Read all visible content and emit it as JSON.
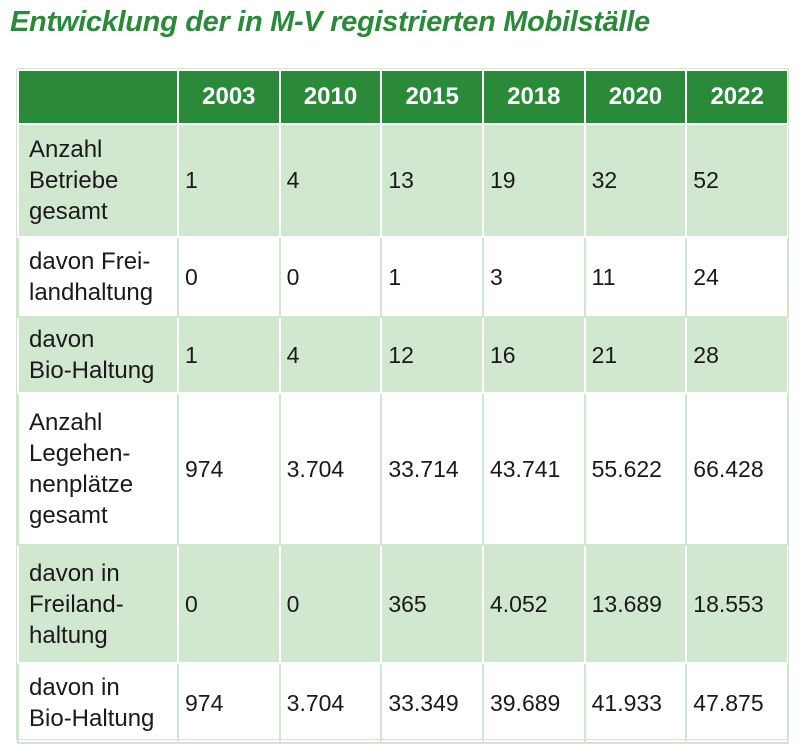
{
  "title": "Entwicklung der in M-V registrierten Mobilställe",
  "colors": {
    "accent_green": "#2a8a3a",
    "row_shade": "#d2e7d0"
  },
  "table": {
    "headers": [
      "",
      "2003",
      "2010",
      "2015",
      "2018",
      "2020",
      "2022"
    ],
    "rows": [
      {
        "label": "Anzahl\nBetriebe\ngesamt",
        "values": [
          "1",
          "4",
          "13",
          "19",
          "32",
          "52"
        ]
      },
      {
        "label": "davon Frei-\nlandhaltung",
        "values": [
          "0",
          "0",
          "1",
          "3",
          "11",
          "24"
        ]
      },
      {
        "label": "davon\nBio-Haltung",
        "values": [
          "1",
          "4",
          "12",
          "16",
          "21",
          "28"
        ]
      },
      {
        "label": "Anzahl\nLegehen-\nnenplätze\ngesamt",
        "values": [
          "974",
          "3.704",
          "33.714",
          "43.741",
          "55.622",
          "66.428"
        ]
      },
      {
        "label": "davon in\nFreiland-\nhaltung",
        "values": [
          "0",
          "0",
          "365",
          "4.052",
          "13.689",
          "18.553"
        ]
      },
      {
        "label": "davon in\nBio-Haltung",
        "values": [
          "974",
          "3.704",
          "33.349",
          "39.689",
          "41.933",
          "47.875"
        ]
      }
    ]
  }
}
